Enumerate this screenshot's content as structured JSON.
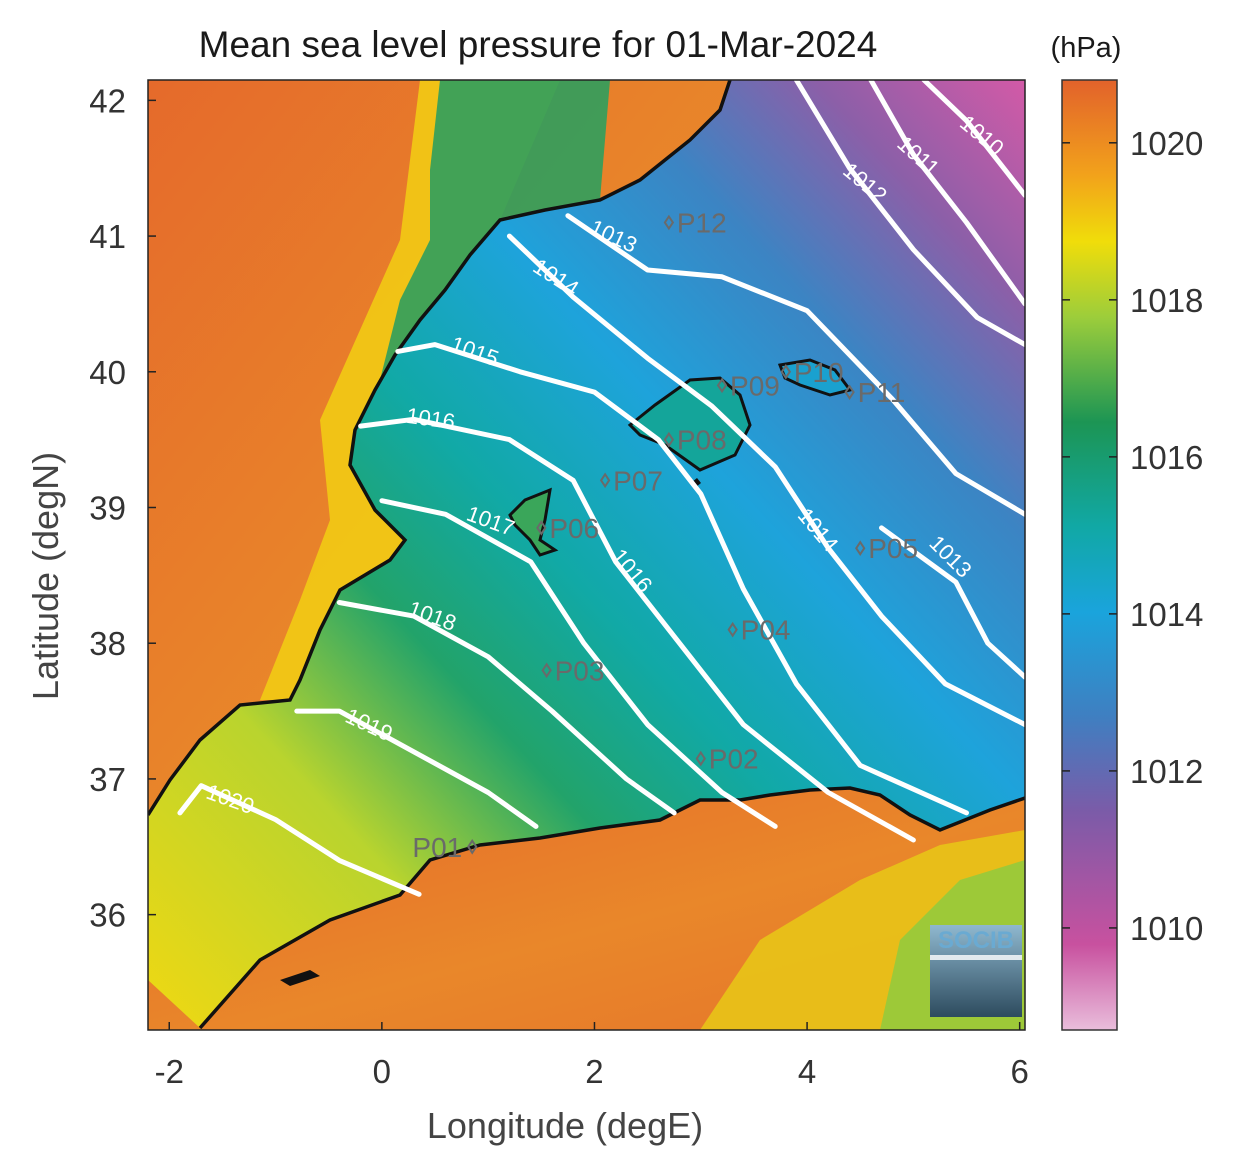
{
  "title": "Mean sea level pressure for 01-Mar-2024",
  "colorbar_unit": "(hPa)",
  "xlabel": "Longitude (degE)",
  "ylabel": "Latitude (degN)",
  "x_ticks": [
    -2,
    0,
    2,
    4,
    6
  ],
  "y_ticks": [
    36,
    37,
    38,
    39,
    40,
    41,
    42
  ],
  "colorbar_ticks": [
    1010,
    1012,
    1014,
    1016,
    1018,
    1020
  ],
  "xlim": [
    -2.2,
    6.05
  ],
  "ylim": [
    35.15,
    42.15
  ],
  "colorbar_range": [
    1008.7,
    1020.8
  ],
  "logo_text": "SOCIB",
  "colors": {
    "land_high": "#e0662b",
    "land_mid": "#f2d10c",
    "land_low": "#2e9a5a",
    "contour": "#ffffff",
    "coast": "#111111",
    "station": "#6a6a6a"
  },
  "stations": [
    {
      "name": "P01",
      "lon": 0.85,
      "lat": 36.5
    },
    {
      "name": "P02",
      "lon": 3.0,
      "lat": 37.15
    },
    {
      "name": "P03",
      "lon": 1.55,
      "lat": 37.8
    },
    {
      "name": "P04",
      "lon": 3.3,
      "lat": 38.1
    },
    {
      "name": "P05",
      "lon": 4.5,
      "lat": 38.7
    },
    {
      "name": "P06",
      "lon": 1.5,
      "lat": 38.85
    },
    {
      "name": "P07",
      "lon": 2.1,
      "lat": 39.2
    },
    {
      "name": "P08",
      "lon": 2.7,
      "lat": 39.5
    },
    {
      "name": "P09",
      "lon": 3.2,
      "lat": 39.9
    },
    {
      "name": "P10",
      "lon": 3.8,
      "lat": 40.0
    },
    {
      "name": "P11",
      "lon": 4.4,
      "lat": 39.85
    },
    {
      "name": "P12",
      "lon": 2.7,
      "lat": 41.1
    }
  ],
  "contours": [
    {
      "label": "1010",
      "label_lon": 5.6,
      "label_lat": 41.7,
      "label_angle": 40,
      "points": [
        [
          5.1,
          42.15
        ],
        [
          5.5,
          41.85
        ],
        [
          5.9,
          41.45
        ],
        [
          6.05,
          41.3
        ]
      ]
    },
    {
      "label": "1011",
      "label_lon": 5.0,
      "label_lat": 41.55,
      "label_angle": 42,
      "points": [
        [
          4.6,
          42.15
        ],
        [
          5.0,
          41.6
        ],
        [
          5.5,
          41.1
        ],
        [
          6.05,
          40.5
        ]
      ]
    },
    {
      "label": "1012",
      "label_lon": 4.5,
      "label_lat": 41.35,
      "label_angle": 40,
      "points": [
        [
          3.9,
          42.15
        ],
        [
          4.4,
          41.5
        ],
        [
          5.0,
          40.9
        ],
        [
          5.6,
          40.4
        ],
        [
          6.05,
          40.2
        ]
      ]
    },
    {
      "label": "1013",
      "label_lon": 2.15,
      "label_lat": 40.95,
      "label_angle": 25,
      "points": [
        [
          1.75,
          41.15
        ],
        [
          2.5,
          40.75
        ],
        [
          3.2,
          40.7
        ],
        [
          4.0,
          40.45
        ],
        [
          4.8,
          39.8
        ],
        [
          5.4,
          39.25
        ],
        [
          6.05,
          38.95
        ]
      ]
    },
    {
      "label": "1013",
      "label_lon": 5.3,
      "label_lat": 38.6,
      "label_angle": 45,
      "points": [
        [
          4.7,
          38.85
        ],
        [
          5.4,
          38.45
        ],
        [
          5.7,
          38.0
        ],
        [
          6.05,
          37.75
        ]
      ]
    },
    {
      "label": "1014",
      "label_lon": 1.6,
      "label_lat": 40.65,
      "label_angle": 33,
      "points": [
        [
          1.2,
          41.0
        ],
        [
          1.8,
          40.55
        ],
        [
          2.5,
          40.1
        ],
        [
          3.1,
          39.75
        ],
        [
          3.7,
          39.3
        ],
        [
          4.2,
          38.7
        ],
        [
          4.7,
          38.2
        ],
        [
          5.3,
          37.7
        ],
        [
          6.05,
          37.4
        ]
      ]
    },
    {
      "label": "1014",
      "label_lon": 4.05,
      "label_lat": 38.8,
      "label_angle": 50,
      "points": [
        [
          3.5,
          39.3
        ]
      ]
    },
    {
      "label": "1015",
      "label_lon": 0.85,
      "label_lat": 40.1,
      "label_angle": 20,
      "points": [
        [
          0.15,
          40.15
        ],
        [
          0.5,
          40.2
        ],
        [
          1.3,
          40.0
        ],
        [
          2.0,
          39.85
        ],
        [
          2.6,
          39.5
        ],
        [
          3.0,
          39.1
        ],
        [
          3.4,
          38.4
        ],
        [
          3.9,
          37.7
        ],
        [
          4.5,
          37.1
        ],
        [
          5.5,
          36.75
        ]
      ]
    },
    {
      "label": "1016",
      "label_lon": 0.45,
      "label_lat": 39.6,
      "label_angle": 8,
      "points": [
        [
          -0.2,
          39.6
        ],
        [
          0.3,
          39.65
        ],
        [
          1.2,
          39.5
        ],
        [
          1.8,
          39.2
        ],
        [
          2.2,
          38.6
        ],
        [
          2.8,
          38.0
        ],
        [
          3.4,
          37.4
        ],
        [
          4.2,
          36.9
        ],
        [
          5.0,
          36.55
        ]
      ]
    },
    {
      "label": "1016",
      "label_lon": 2.3,
      "label_lat": 38.5,
      "label_angle": 50,
      "points": []
    },
    {
      "label": "1017",
      "label_lon": 1.0,
      "label_lat": 38.85,
      "label_angle": 20,
      "points": [
        [
          0.0,
          39.05
        ],
        [
          0.6,
          38.95
        ],
        [
          1.4,
          38.6
        ],
        [
          1.9,
          38.0
        ],
        [
          2.5,
          37.4
        ],
        [
          3.2,
          36.9
        ],
        [
          3.7,
          36.65
        ]
      ]
    },
    {
      "label": "1018",
      "label_lon": 0.45,
      "label_lat": 38.15,
      "label_angle": 20,
      "points": [
        [
          -0.4,
          38.3
        ],
        [
          0.3,
          38.2
        ],
        [
          1.0,
          37.9
        ],
        [
          1.6,
          37.5
        ],
        [
          2.3,
          37.0
        ],
        [
          2.75,
          36.75
        ]
      ]
    },
    {
      "label": "1019",
      "label_lon": -0.15,
      "label_lat": 37.35,
      "label_angle": 25,
      "points": [
        [
          -0.8,
          37.5
        ],
        [
          -0.4,
          37.5
        ],
        [
          0.3,
          37.2
        ],
        [
          1.0,
          36.9
        ],
        [
          1.45,
          36.65
        ]
      ]
    },
    {
      "label": "1020",
      "label_lon": -1.45,
      "label_lat": 36.8,
      "label_angle": 20,
      "points": [
        [
          -1.9,
          36.75
        ],
        [
          -1.7,
          36.95
        ],
        [
          -1.0,
          36.7
        ],
        [
          -0.4,
          36.4
        ],
        [
          0.35,
          36.15
        ]
      ]
    }
  ]
}
